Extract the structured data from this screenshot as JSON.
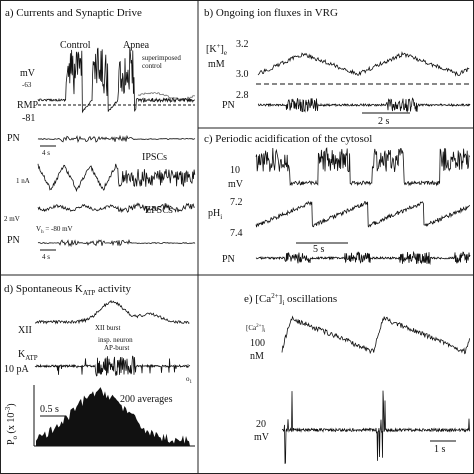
{
  "panel_a": {
    "title": "a) Currents and Synaptic Drive",
    "control": "Control",
    "apnea": "Apnea",
    "superimposed": [
      "superimposed",
      "control"
    ],
    "mv": "mV",
    "v_top": "-63",
    "rmp": "RMP",
    "v_rmp": "-81",
    "pn_1": "PN",
    "scale_1": "4 s",
    "ipscs": "IPSCs",
    "current": "1 nA",
    "epscs": "EPSCs",
    "voltage": "2 mV",
    "vh": {
      "v": "V",
      "sub": "h",
      "rest": " = -80 mV"
    },
    "pn_2": "PN",
    "scale_2": "4 s"
  },
  "panel_b": {
    "title": "b) Ongoing ion fluxes in VRG",
    "k": {
      "open": "[K",
      "sup": "+",
      "close": "]",
      "sub": "e"
    },
    "unit": "mM",
    "ticks": [
      "3.2",
      "3.0",
      "2.8"
    ],
    "pn": "PN",
    "scale": "2 s"
  },
  "panel_c": {
    "title": "c) Periodic acidification of the cytosol",
    "mv_value": "10",
    "mv": "mV",
    "ph": {
      "main": "pH",
      "sub": "i"
    },
    "ticks": [
      "7.2",
      "7.4"
    ],
    "scale": "5 s",
    "pn": "PN"
  },
  "panel_d": {
    "title": {
      "main": "d) Spontaneous K",
      "sub": "ATP",
      "rest": " activity"
    },
    "xii": "XII",
    "xii_burst": "XII burst",
    "neuron": [
      "insp. neuron",
      "AP-burst"
    ],
    "katp": {
      "main": "K",
      "sub": "ATP"
    },
    "current": "10 pA",
    "c": "c",
    "o1": {
      "main": "o",
      "sub": "1"
    },
    "scale": "0.5 s",
    "averages": "200 averages",
    "po": {
      "main": "P",
      "sub": "o",
      "rest": " (x 10",
      "sup": "-3",
      "close": ")"
    }
  },
  "panel_e": {
    "title": {
      "main": "e) [Ca",
      "sup": "2+",
      "close": "]",
      "sub": "i",
      "rest": " oscillations"
    },
    "ca": {
      "main": "[Ca",
      "sup": "2+",
      "close": "]",
      "sub": "i"
    },
    "ca_value": "100",
    "ca_unit": "nM",
    "mv_value": "20",
    "mv": "mV",
    "scale": "1 s"
  }
}
